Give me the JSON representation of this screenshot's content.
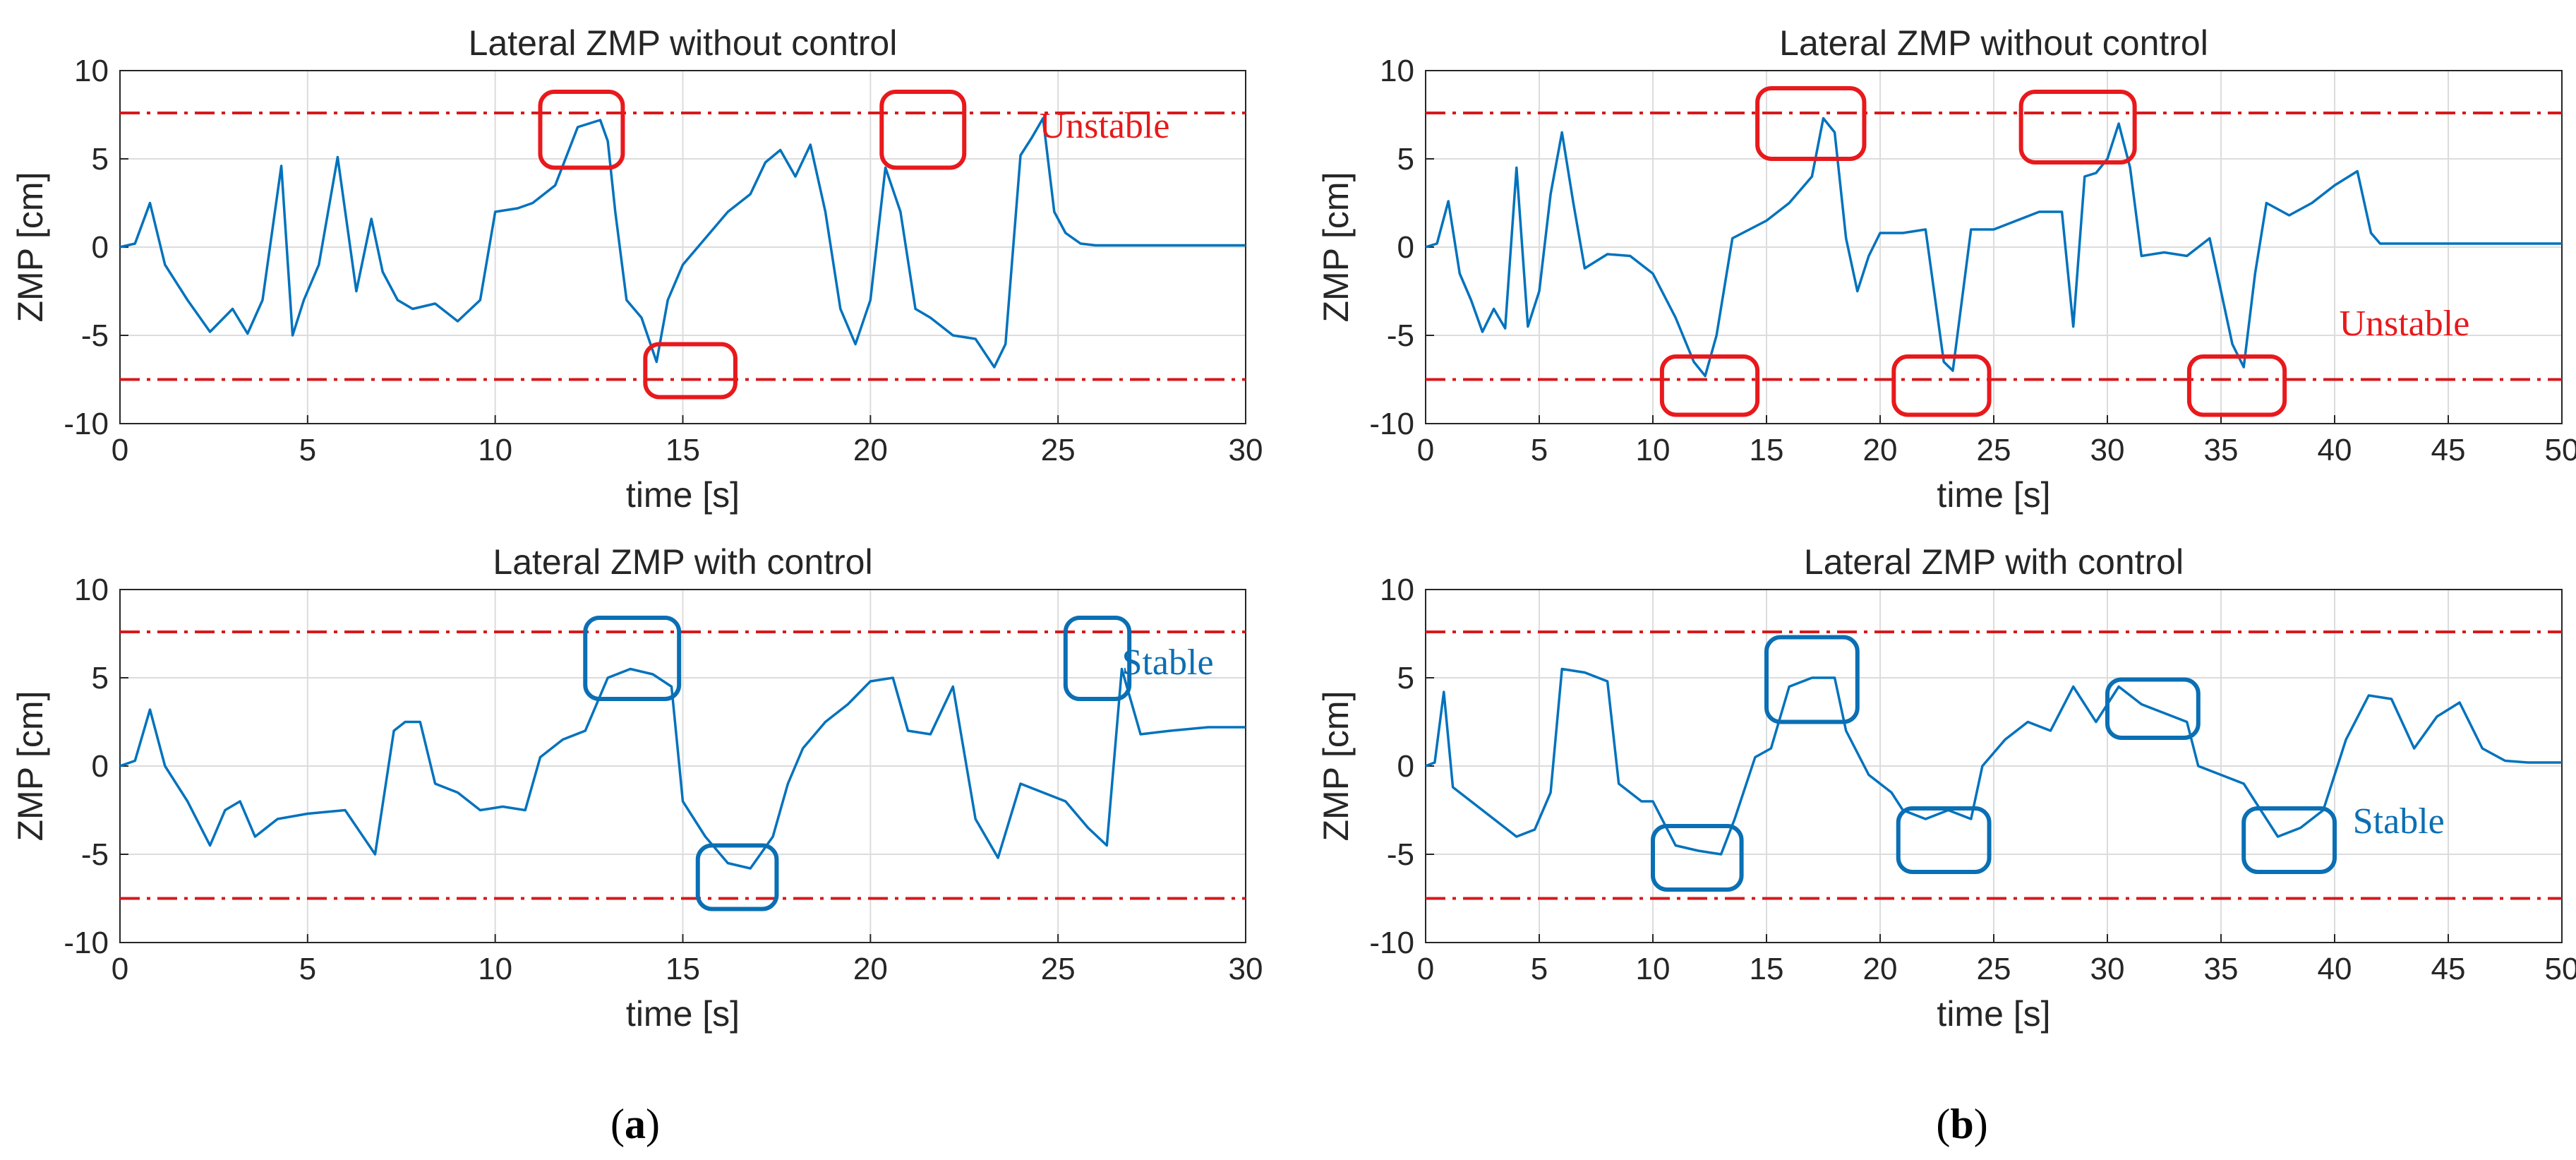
{
  "colors": {
    "line": "#0072BD",
    "limit": "#D7191C",
    "unstable": "#E8191C",
    "stable": "#0A6FB4",
    "axis": "#262626",
    "grid": "#DCDCDC"
  },
  "panel_labels": [
    {
      "prefix": "(",
      "letter": "a",
      "suffix": ")"
    },
    {
      "prefix": "(",
      "letter": "b",
      "suffix": ")"
    }
  ],
  "chart_data": [
    {
      "type": "line",
      "title": "Lateral ZMP without control",
      "xlabel": "time [s]",
      "ylabel": "ZMP [cm]",
      "xlim": [
        0,
        30
      ],
      "ylim": [
        -10,
        10
      ],
      "xticks": [
        0,
        5,
        10,
        15,
        20,
        25,
        30
      ],
      "yticks": [
        -10,
        -5,
        0,
        5,
        10
      ],
      "limits": [
        7.6,
        -7.5
      ],
      "annotation": {
        "text": "Unstable",
        "x": 24.5,
        "y": 6.2,
        "style": "unstable"
      },
      "highlight_boxes": [
        {
          "x0": 11.2,
          "x1": 13.4,
          "y0": 4.5,
          "y1": 8.8
        },
        {
          "x0": 14.0,
          "x1": 16.4,
          "y0": -8.5,
          "y1": -5.5
        },
        {
          "x0": 20.3,
          "x1": 22.5,
          "y0": 4.5,
          "y1": 8.8
        }
      ],
      "series": [
        {
          "name": "Lateral ZMP",
          "x": [
            0,
            0.4,
            0.8,
            1.2,
            1.8,
            2.4,
            3.0,
            3.4,
            3.8,
            4.3,
            4.6,
            4.9,
            5.3,
            5.8,
            6.3,
            6.7,
            7.0,
            7.4,
            7.8,
            8.4,
            9.0,
            9.6,
            10.0,
            10.6,
            11.0,
            11.6,
            12.2,
            12.8,
            13.0,
            13.2,
            13.5,
            13.9,
            14.3,
            14.6,
            15.0,
            15.6,
            16.2,
            16.8,
            17.2,
            17.6,
            18.0,
            18.4,
            18.8,
            19.2,
            19.6,
            20.0,
            20.4,
            20.8,
            21.2,
            21.6,
            22.2,
            22.8,
            23.3,
            23.6,
            24.0,
            24.3,
            24.6,
            24.9,
            25.2,
            25.6,
            26.0,
            27.0,
            28.0,
            29.0,
            30.0
          ],
          "values": [
            0,
            0.2,
            2.5,
            -1.0,
            -3.0,
            -4.8,
            -3.5,
            -4.9,
            -3.0,
            4.6,
            -5.0,
            -3.0,
            -1.0,
            5.1,
            -2.5,
            1.6,
            -1.4,
            -3.0,
            -3.5,
            -3.2,
            -4.2,
            -3.0,
            2.0,
            2.2,
            2.5,
            3.5,
            6.8,
            7.2,
            6.0,
            2.0,
            -3.0,
            -4.0,
            -6.5,
            -3.0,
            -1.0,
            0.5,
            2.0,
            3.0,
            4.8,
            5.5,
            4.0,
            5.8,
            2.0,
            -3.5,
            -5.5,
            -3.0,
            4.5,
            2.0,
            -3.5,
            -4.0,
            -5.0,
            -5.2,
            -6.8,
            -5.5,
            5.2,
            6.2,
            7.3,
            2.0,
            0.8,
            0.2,
            0.1,
            0.1,
            0.1,
            0.1,
            0.1
          ]
        }
      ]
    },
    {
      "type": "line",
      "title": "Lateral ZMP without control",
      "xlabel": "time [s]",
      "ylabel": "ZMP [cm]",
      "xlim": [
        0,
        50
      ],
      "ylim": [
        -10,
        10
      ],
      "xticks": [
        0,
        5,
        10,
        15,
        20,
        25,
        30,
        35,
        40,
        45,
        50
      ],
      "yticks": [
        -10,
        -5,
        0,
        5,
        10
      ],
      "limits": [
        7.6,
        -7.5
      ],
      "annotation": {
        "text": "Unstable",
        "x": 40.2,
        "y": -5.0,
        "style": "unstable"
      },
      "highlight_boxes": [
        {
          "x0": 14.6,
          "x1": 19.3,
          "y0": 5.0,
          "y1": 9.0
        },
        {
          "x0": 26.2,
          "x1": 31.2,
          "y0": 4.8,
          "y1": 8.8
        },
        {
          "x0": 10.4,
          "x1": 14.6,
          "y0": -9.5,
          "y1": -6.2
        },
        {
          "x0": 20.6,
          "x1": 24.8,
          "y0": -9.5,
          "y1": -6.2
        },
        {
          "x0": 33.6,
          "x1": 37.8,
          "y0": -9.5,
          "y1": -6.2
        }
      ],
      "series": [
        {
          "name": "Lateral ZMP",
          "x": [
            0,
            0.5,
            1.0,
            1.5,
            2.0,
            2.5,
            3.0,
            3.5,
            4.0,
            4.5,
            5.0,
            5.5,
            6.0,
            6.5,
            7.0,
            7.5,
            8.0,
            9.0,
            10.0,
            11.0,
            11.8,
            12.3,
            12.8,
            13.5,
            15.0,
            16.0,
            17.0,
            17.5,
            18.0,
            18.5,
            19.0,
            19.5,
            20.0,
            21.0,
            22.0,
            22.8,
            23.2,
            24.0,
            25.0,
            26.0,
            27.0,
            28.0,
            28.5,
            29.0,
            29.5,
            30.0,
            30.5,
            31.0,
            31.5,
            32.5,
            33.5,
            34.5,
            35.5,
            36.0,
            36.5,
            37.0,
            38.0,
            39.0,
            40.0,
            41.0,
            41.6,
            42.0,
            43.0,
            44.0,
            45.0,
            46.0,
            47.0,
            48.0,
            49.0,
            50.0
          ],
          "values": [
            0,
            0.2,
            2.6,
            -1.5,
            -3.0,
            -4.8,
            -3.5,
            -4.6,
            4.5,
            -4.5,
            -2.5,
            3.0,
            6.5,
            2.5,
            -1.2,
            -0.8,
            -0.4,
            -0.5,
            -1.5,
            -4.0,
            -6.5,
            -7.3,
            -5.0,
            0.5,
            1.5,
            2.5,
            4.0,
            7.3,
            6.5,
            0.5,
            -2.5,
            -0.5,
            0.8,
            0.8,
            1.0,
            -6.5,
            -7.0,
            1.0,
            1.0,
            1.5,
            2.0,
            2.0,
            -4.5,
            4.0,
            4.2,
            5.0,
            7.0,
            4.5,
            -0.5,
            -0.3,
            -0.5,
            0.5,
            -5.5,
            -6.8,
            -1.5,
            2.5,
            1.8,
            2.5,
            3.5,
            4.3,
            0.8,
            0.2,
            0.2,
            0.2,
            0.2,
            0.2,
            0.2,
            0.2,
            0.2,
            0.2
          ]
        }
      ]
    },
    {
      "type": "line",
      "title": "Lateral ZMP with control",
      "xlabel": "time [s]",
      "ylabel": "ZMP [cm]",
      "xlim": [
        0,
        30
      ],
      "ylim": [
        -10,
        10
      ],
      "xticks": [
        0,
        5,
        10,
        15,
        20,
        25,
        30
      ],
      "yticks": [
        -10,
        -5,
        0,
        5,
        10
      ],
      "limits": [
        7.6,
        -7.5
      ],
      "annotation": {
        "text": "Stable",
        "x": 26.7,
        "y": 5.2,
        "style": "stable"
      },
      "highlight_boxes": [
        {
          "x0": 12.4,
          "x1": 14.9,
          "y0": 3.8,
          "y1": 8.4
        },
        {
          "x0": 15.4,
          "x1": 17.5,
          "y0": -8.1,
          "y1": -4.5
        },
        {
          "x0": 25.2,
          "x1": 26.9,
          "y0": 3.8,
          "y1": 8.4
        }
      ],
      "series": [
        {
          "name": "Lateral ZMP",
          "x": [
            0,
            0.4,
            0.8,
            1.2,
            1.8,
            2.4,
            2.8,
            3.2,
            3.6,
            4.2,
            5.0,
            6.0,
            6.8,
            7.3,
            7.6,
            8.0,
            8.4,
            9.0,
            9.6,
            10.2,
            10.8,
            11.2,
            11.8,
            12.4,
            13.0,
            13.6,
            14.2,
            14.7,
            15.0,
            15.6,
            16.2,
            16.8,
            17.4,
            17.8,
            18.2,
            18.8,
            19.4,
            20.0,
            20.6,
            21.0,
            21.6,
            22.2,
            22.8,
            23.4,
            24.0,
            24.6,
            25.2,
            25.8,
            26.3,
            26.7,
            27.2,
            28.0,
            29.0,
            30.0
          ],
          "values": [
            0,
            0.3,
            3.2,
            0,
            -2.0,
            -4.5,
            -2.5,
            -2.0,
            -4.0,
            -3.0,
            -2.7,
            -2.5,
            -5.0,
            2.0,
            2.5,
            2.5,
            -1.0,
            -1.5,
            -2.5,
            -2.3,
            -2.5,
            0.5,
            1.5,
            2.0,
            5.0,
            5.5,
            5.2,
            4.5,
            -2.0,
            -4.0,
            -5.5,
            -5.8,
            -4.0,
            -1.0,
            1.0,
            2.5,
            3.5,
            4.8,
            5.0,
            2.0,
            1.8,
            4.5,
            -3.0,
            -5.2,
            -1.0,
            -1.5,
            -2.0,
            -3.5,
            -4.5,
            5.5,
            1.8,
            2.0,
            2.2,
            2.2
          ]
        }
      ]
    },
    {
      "type": "line",
      "title": "Lateral ZMP with control",
      "xlabel": "time [s]",
      "ylabel": "ZMP [cm]",
      "xlim": [
        0,
        50
      ],
      "ylim": [
        -10,
        10
      ],
      "xticks": [
        0,
        5,
        10,
        15,
        20,
        25,
        30,
        35,
        40,
        45,
        50
      ],
      "yticks": [
        -10,
        -5,
        0,
        5,
        10
      ],
      "limits": [
        7.6,
        -7.5
      ],
      "annotation": {
        "text": "Stable",
        "x": 40.8,
        "y": -3.8,
        "style": "stable"
      },
      "highlight_boxes": [
        {
          "x0": 10.0,
          "x1": 13.9,
          "y0": -7.0,
          "y1": -3.4
        },
        {
          "x0": 15.0,
          "x1": 19.0,
          "y0": 2.5,
          "y1": 7.3
        },
        {
          "x0": 20.8,
          "x1": 24.8,
          "y0": -6.0,
          "y1": -2.4
        },
        {
          "x0": 30.0,
          "x1": 34.0,
          "y0": 1.6,
          "y1": 4.9
        },
        {
          "x0": 36.0,
          "x1": 40.0,
          "y0": -6.0,
          "y1": -2.4
        }
      ],
      "series": [
        {
          "name": "Lateral ZMP",
          "x": [
            0,
            0.4,
            0.8,
            1.2,
            2.0,
            3.0,
            4.0,
            4.8,
            5.5,
            6.0,
            7.0,
            8.0,
            8.5,
            9.5,
            10.0,
            11.0,
            12.0,
            13.0,
            13.6,
            14.5,
            15.2,
            16.0,
            17.0,
            18.0,
            18.5,
            19.5,
            20.5,
            21.0,
            22.0,
            23.0,
            24.0,
            24.5,
            25.5,
            26.5,
            27.5,
            28.5,
            29.5,
            30.5,
            31.5,
            32.5,
            33.5,
            34.0,
            35.0,
            36.0,
            37.5,
            38.5,
            39.5,
            40.5,
            41.5,
            42.5,
            43.5,
            44.5,
            45.5,
            46.5,
            47.5,
            48.5,
            50.0
          ],
          "values": [
            0,
            0.2,
            4.2,
            -1.2,
            -2.0,
            -3.0,
            -4.0,
            -3.6,
            -1.5,
            5.5,
            5.3,
            4.8,
            -1.0,
            -2.0,
            -2.0,
            -4.5,
            -4.8,
            -5.0,
            -3.0,
            0.5,
            1.0,
            4.5,
            5.0,
            5.0,
            2.0,
            -0.5,
            -1.5,
            -2.5,
            -3.0,
            -2.5,
            -3.0,
            0.0,
            1.5,
            2.5,
            2.0,
            4.5,
            2.5,
            4.5,
            3.5,
            3.0,
            2.5,
            0.0,
            -0.5,
            -1.0,
            -4.0,
            -3.5,
            -2.5,
            1.5,
            4.0,
            3.8,
            1.0,
            2.8,
            3.6,
            1.0,
            0.3,
            0.2,
            0.2
          ]
        }
      ]
    }
  ]
}
